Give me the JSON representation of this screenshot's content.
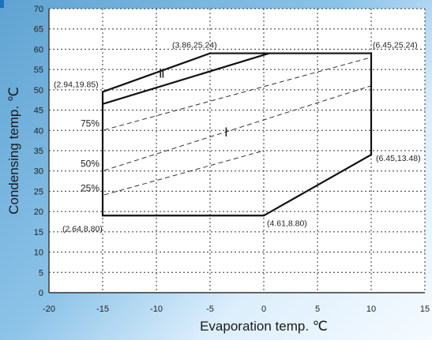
{
  "chart_data": {
    "type": "line",
    "title": "",
    "xlabel": "Evaporation temp.   ℃",
    "ylabel": "Condensing temp. ℃",
    "xlim": [
      -20,
      15
    ],
    "ylim": [
      0,
      70
    ],
    "x_ticks": [
      -20,
      -15,
      -10,
      -5,
      0,
      5,
      10,
      15
    ],
    "y_ticks": [
      0,
      5,
      10,
      15,
      20,
      25,
      30,
      35,
      40,
      45,
      50,
      55,
      60,
      65,
      70
    ],
    "grid": true,
    "envelope": [
      {
        "x": -15,
        "y": 19
      },
      {
        "x": 0,
        "y": 19
      },
      {
        "x": 10,
        "y": 34
      },
      {
        "x": 10,
        "y": 59
      },
      {
        "x": -5,
        "y": 59
      },
      {
        "x": -15,
        "y": 49.5
      }
    ],
    "divider_line": [
      {
        "x": -15,
        "y": 46.5
      },
      {
        "x": 0.5,
        "y": 59
      }
    ],
    "capacity_lines": [
      {
        "label": "75%",
        "points": [
          {
            "x": -15,
            "y": 40
          },
          {
            "x": 10,
            "y": 58
          }
        ]
      },
      {
        "label": "50%",
        "points": [
          {
            "x": -15,
            "y": 30
          },
          {
            "x": 10,
            "y": 51
          }
        ]
      },
      {
        "label": "25%",
        "points": [
          {
            "x": -15,
            "y": 24
          },
          {
            "x": 0,
            "y": 35
          }
        ]
      }
    ],
    "point_labels": [
      {
        "text": "(3.86,25.24)",
        "x": -5,
        "y": 59
      },
      {
        "text": "(6.45,25.24)",
        "x": 10,
        "y": 59
      },
      {
        "text": "(2.94,19.85)",
        "x": -15,
        "y": 49.5
      },
      {
        "text": "(6.45,13.48)",
        "x": 10,
        "y": 34
      },
      {
        "text": "(4.61,8.80)",
        "x": 0,
        "y": 19
      },
      {
        "text": "(2.64,8.80)",
        "x": -15,
        "y": 19
      }
    ],
    "region_labels": [
      {
        "text": "Ⅱ",
        "x": -9.5,
        "y": 53
      },
      {
        "text": "Ⅰ",
        "x": -3.5,
        "y": 38.5
      }
    ]
  },
  "colors": {
    "grid": "#333333",
    "envelope": "#111111",
    "capacity": "#333333",
    "plot_bg": "#ffffff"
  }
}
